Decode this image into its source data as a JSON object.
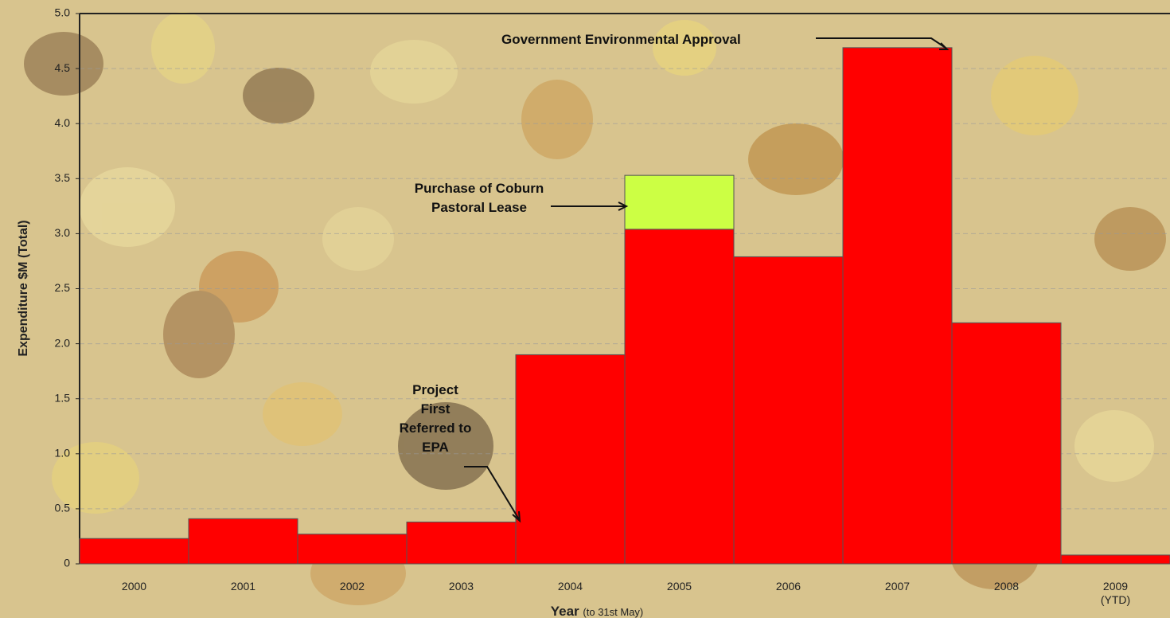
{
  "chart_data": {
    "type": "stacked-bar",
    "ylabel": "Expenditure $M (Total)",
    "xlabel": "Year",
    "xlabel_note": "(to 31st May)",
    "categories": [
      "2000",
      "2001",
      "2002",
      "2003",
      "2004",
      "2005",
      "2006",
      "2007",
      "2008",
      "2009 (YTD)"
    ],
    "series": [
      {
        "color": "#ff0000",
        "values": [
          0.23,
          0.41,
          0.27,
          0.38,
          1.9,
          3.04,
          2.79,
          4.69,
          2.19,
          0.08
        ]
      },
      {
        "color": "#ccff44",
        "values": [
          null,
          null,
          null,
          null,
          null,
          0.49,
          null,
          null,
          null,
          null
        ]
      }
    ],
    "ylim": [
      0,
      5
    ],
    "yticks": [
      0,
      0.5,
      {
        "value": 1,
        "label": "1.0"
      },
      1.5,
      {
        "value": 2,
        "label": "2.0"
      },
      2.5,
      {
        "value": 3,
        "label": "3.0"
      },
      3.5,
      {
        "value": 4,
        "label": "4.0"
      },
      4.5,
      {
        "value": 5,
        "label": "5.0"
      }
    ],
    "grid": true,
    "annotations": [
      "Government Environmental Approval",
      "Purchase of Coburn Pastoral Lease",
      "Project First Referred to EPA"
    ]
  }
}
